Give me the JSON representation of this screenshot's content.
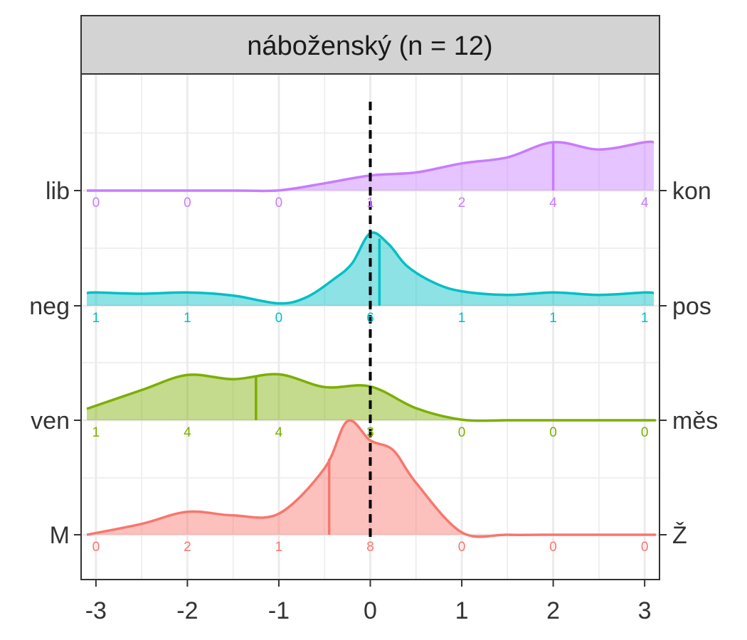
{
  "chart_data": {
    "type": "ridgeline-density",
    "title": "náboženský (n = 12)",
    "xlabel": "",
    "ylabel": "",
    "xlim": [
      -3.1,
      3.1
    ],
    "x_ticks": [
      "-3",
      "-2",
      "-1",
      "0",
      "1",
      "2",
      "3"
    ],
    "x_tick_values": [
      -3,
      -2,
      -1,
      0,
      1,
      2,
      3
    ],
    "reference_line": 0,
    "grid": true,
    "series": [
      {
        "left_label": "lib",
        "right_label": "kon",
        "color": "#C77CFF",
        "median": 2.0,
        "counts": [
          0,
          0,
          0,
          1,
          2,
          4,
          4
        ],
        "density_x": [
          -3.1,
          -1.5,
          -1.0,
          -0.5,
          0,
          0.5,
          1.0,
          1.5,
          2.0,
          2.5,
          3.0,
          3.1
        ],
        "density_y": [
          0,
          0,
          0.002,
          0.06,
          0.125,
          0.15,
          0.225,
          0.275,
          0.4,
          0.34,
          0.4,
          0.4
        ]
      },
      {
        "left_label": "neg",
        "right_label": "pos",
        "color": "#00BFC4",
        "median": 0.1,
        "counts": [
          1,
          1,
          0,
          6,
          1,
          1,
          1
        ],
        "density_x": [
          -3.1,
          -3.0,
          -2.5,
          -2.0,
          -1.5,
          -1.0,
          -0.7,
          -0.4,
          -0.2,
          0,
          0.2,
          0.4,
          0.7,
          1.0,
          1.5,
          2.0,
          2.5,
          3.0,
          3.1
        ],
        "density_y": [
          0.105,
          0.11,
          0.1,
          0.11,
          0.085,
          0.02,
          0.07,
          0.22,
          0.35,
          0.6,
          0.51,
          0.33,
          0.19,
          0.12,
          0.09,
          0.11,
          0.09,
          0.11,
          0.105
        ]
      },
      {
        "left_label": "ven",
        "right_label": "měs",
        "color": "#7CAE00",
        "median": -1.25,
        "counts": [
          1,
          4,
          4,
          3,
          0,
          0,
          0
        ],
        "density_x": [
          -3.1,
          -2.5,
          -2.0,
          -1.5,
          -1.0,
          -0.5,
          0,
          0.5,
          1.0,
          1.5,
          2.0,
          3.0,
          3.1
        ],
        "density_y": [
          0.095,
          0.25,
          0.375,
          0.34,
          0.38,
          0.275,
          0.28,
          0.1,
          0.005,
          0,
          0,
          0,
          0
        ]
      },
      {
        "left_label": "M",
        "right_label": "Ž",
        "color": "#F8766D",
        "median": -0.45,
        "counts": [
          0,
          2,
          1,
          8,
          0,
          0,
          0
        ],
        "density_x": [
          -3.1,
          -2.5,
          -2.0,
          -1.5,
          -1.0,
          -0.5,
          -0.25,
          0,
          0.25,
          0.5,
          1.0,
          1.5,
          2.0,
          3.0,
          3.1
        ],
        "density_y": [
          0,
          0.09,
          0.19,
          0.16,
          0.175,
          0.55,
          0.94,
          0.78,
          0.7,
          0.43,
          0.02,
          0,
          0,
          0,
          0
        ]
      }
    ]
  }
}
